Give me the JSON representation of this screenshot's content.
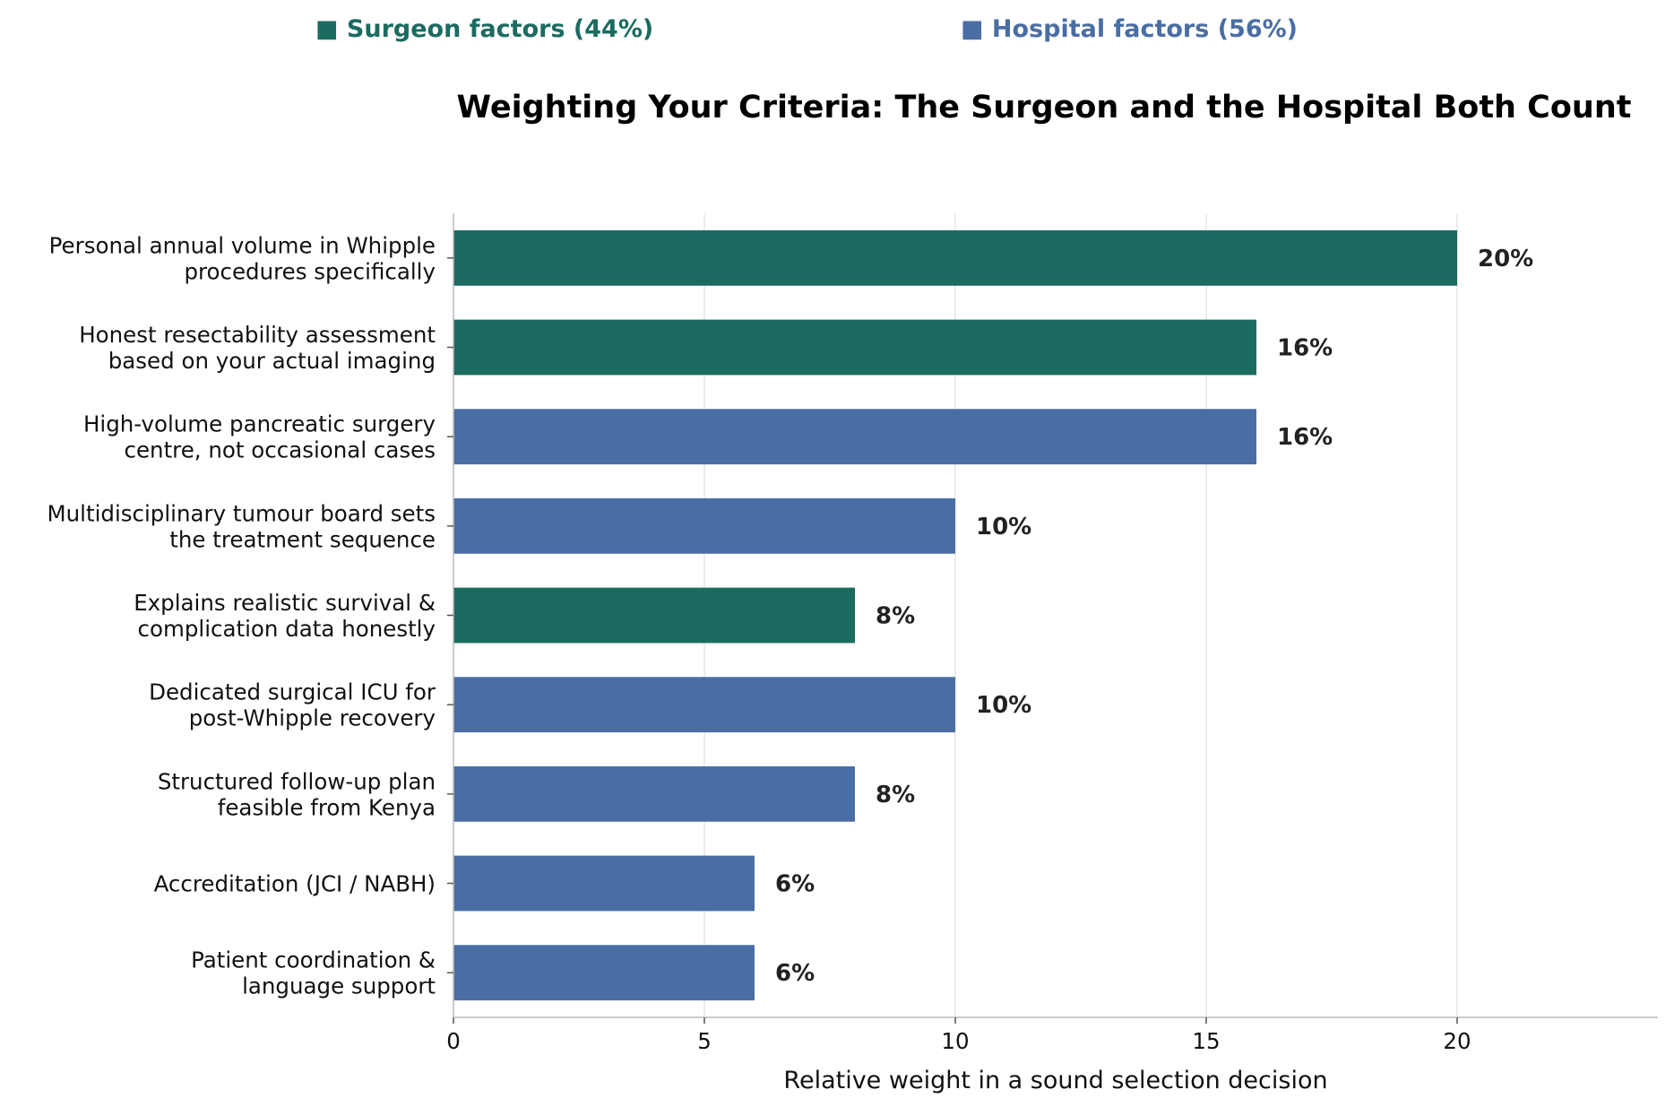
{
  "chart_data": {
    "type": "bar",
    "orientation": "horizontal",
    "title": "Weighting Your Criteria: The Surgeon and the Hospital Both Count",
    "xlabel": "Relative weight in a sound selection decision",
    "ylabel": "",
    "xlim": [
      0,
      24
    ],
    "xticks": [
      0,
      5,
      10,
      15,
      20
    ],
    "grid": "x",
    "legend_position": "top",
    "legend": [
      {
        "marker": "■",
        "label": "Surgeon factors (44%)",
        "color": "#1b6b60"
      },
      {
        "marker": "■",
        "label": "Hospital factors (56%)",
        "color": "#4a6ea4"
      }
    ],
    "bars": [
      {
        "label_lines": [
          "Personal annual volume in Whipple",
          "procedures specifically"
        ],
        "value": 20,
        "value_label": "20%",
        "group": "Surgeon factors",
        "color": "#1b6b60"
      },
      {
        "label_lines": [
          "Honest resectability assessment",
          "based on your actual imaging"
        ],
        "value": 16,
        "value_label": "16%",
        "group": "Surgeon factors",
        "color": "#1b6b60"
      },
      {
        "label_lines": [
          "High-volume pancreatic surgery",
          "centre, not occasional cases"
        ],
        "value": 16,
        "value_label": "16%",
        "group": "Hospital factors",
        "color": "#4a6ea4"
      },
      {
        "label_lines": [
          "Multidisciplinary tumour board sets",
          "the treatment sequence"
        ],
        "value": 10,
        "value_label": "10%",
        "group": "Hospital factors",
        "color": "#4a6ea4"
      },
      {
        "label_lines": [
          "Explains realistic survival &",
          "complication data honestly"
        ],
        "value": 8,
        "value_label": "8%",
        "group": "Surgeon factors",
        "color": "#1b6b60"
      },
      {
        "label_lines": [
          "Dedicated surgical ICU for",
          "post-Whipple recovery"
        ],
        "value": 10,
        "value_label": "10%",
        "group": "Hospital factors",
        "color": "#4a6ea4"
      },
      {
        "label_lines": [
          "Structured follow-up plan",
          "feasible from Kenya"
        ],
        "value": 8,
        "value_label": "8%",
        "group": "Hospital factors",
        "color": "#4a6ea4"
      },
      {
        "label_lines": [
          "Accreditation (JCI / NABH)"
        ],
        "value": 6,
        "value_label": "6%",
        "group": "Hospital factors",
        "color": "#4a6ea4"
      },
      {
        "label_lines": [
          "Patient coordination &",
          "language support"
        ],
        "value": 6,
        "value_label": "6%",
        "group": "Hospital factors",
        "color": "#4a6ea4"
      }
    ]
  }
}
